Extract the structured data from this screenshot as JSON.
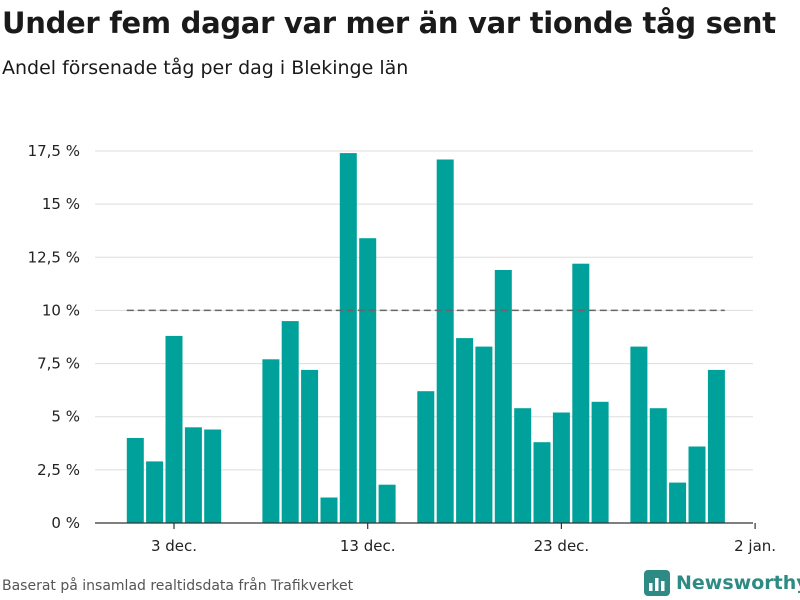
{
  "header": {
    "title": "Under fem dagar var mer än var tionde tåg sent",
    "subtitle": "Andel försenade tåg per dag i Blekinge län"
  },
  "footer": {
    "source": "Baserat på insamlad realtidsdata från Trafikverket",
    "brand": "Newsworthy"
  },
  "colors": {
    "bar": "#00a19a",
    "reference_line": "#666666",
    "grid": "#dddddd",
    "brand": "#2e8b84"
  },
  "chart_data": {
    "type": "bar",
    "title": "Under fem dagar var mer än var tionde tåg sent",
    "subtitle": "Andel försenade tåg per dag i Blekinge län",
    "xlabel": "",
    "ylabel": "",
    "ylim": [
      0,
      17.5
    ],
    "y_ticks": [
      0,
      2.5,
      5,
      7.5,
      10,
      12.5,
      15,
      17.5
    ],
    "y_tick_labels": [
      "0 %",
      "2,5 %",
      "5 %",
      "7,5 %",
      "10 %",
      "12,5 %",
      "15 %",
      "17,5 %"
    ],
    "x_ticks": [
      {
        "date": "2018-12-03",
        "label": "3 dec."
      },
      {
        "date": "2018-12-13",
        "label": "13 dec."
      },
      {
        "date": "2018-12-23",
        "label": "23 dec."
      },
      {
        "date": "2019-01-02",
        "label": "2 jan."
      }
    ],
    "reference_line": {
      "y": 10,
      "from": "2018-12-01",
      "to": "2018-12-31",
      "style": "dashed"
    },
    "grid": true,
    "series": [
      {
        "values": [
          {
            "date": "2018-12-01",
            "value": 4.0
          },
          {
            "date": "2018-12-02",
            "value": 2.9
          },
          {
            "date": "2018-12-03",
            "value": 8.8
          },
          {
            "date": "2018-12-04",
            "value": 4.5
          },
          {
            "date": "2018-12-05",
            "value": 4.4
          },
          {
            "date": "2018-12-08",
            "value": 7.7
          },
          {
            "date": "2018-12-09",
            "value": 9.5
          },
          {
            "date": "2018-12-10",
            "value": 7.2
          },
          {
            "date": "2018-12-11",
            "value": 1.2
          },
          {
            "date": "2018-12-12",
            "value": 17.4
          },
          {
            "date": "2018-12-13",
            "value": 13.4
          },
          {
            "date": "2018-12-14",
            "value": 1.8
          },
          {
            "date": "2018-12-16",
            "value": 6.2
          },
          {
            "date": "2018-12-17",
            "value": 17.1
          },
          {
            "date": "2018-12-18",
            "value": 8.7
          },
          {
            "date": "2018-12-19",
            "value": 8.3
          },
          {
            "date": "2018-12-20",
            "value": 11.9
          },
          {
            "date": "2018-12-21",
            "value": 5.4
          },
          {
            "date": "2018-12-22",
            "value": 3.8
          },
          {
            "date": "2018-12-23",
            "value": 5.2
          },
          {
            "date": "2018-12-24",
            "value": 12.2
          },
          {
            "date": "2018-12-25",
            "value": 5.7
          },
          {
            "date": "2018-12-27",
            "value": 8.3
          },
          {
            "date": "2018-12-28",
            "value": 5.4
          },
          {
            "date": "2018-12-29",
            "value": 1.9
          },
          {
            "date": "2018-12-30",
            "value": 3.6
          },
          {
            "date": "2018-12-31",
            "value": 7.2
          }
        ]
      }
    ]
  }
}
